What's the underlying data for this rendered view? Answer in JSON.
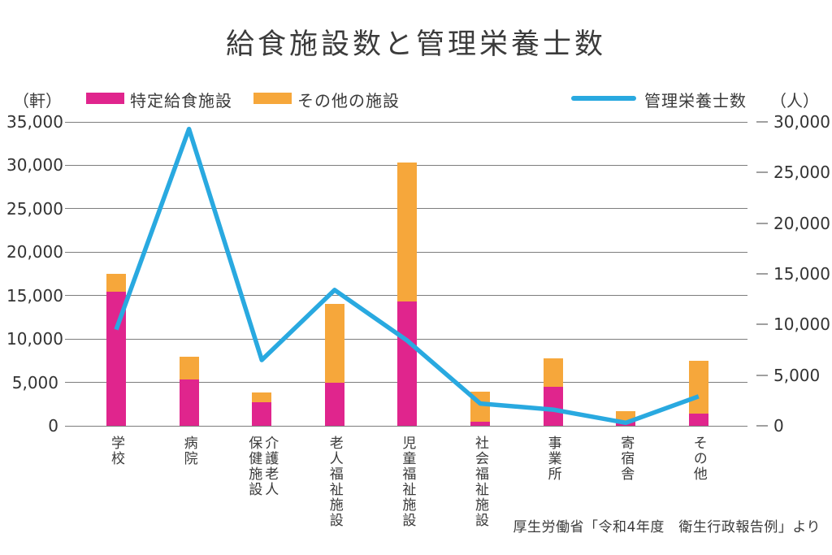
{
  "title": "給食施設数と管理栄養士数",
  "legend": {
    "left_unit": "（軒）",
    "right_unit": "（人）",
    "bar_series_1": "特定給食施設",
    "bar_series_2": "その他の施設",
    "line_series": "管理栄養士数"
  },
  "source": "厚生労働省「令和4年度　衛生行政報告例」より",
  "colors": {
    "pink": "#E0258D",
    "orange": "#F6A73B",
    "blue": "#29A9E0",
    "grid": "#7d7d7d",
    "text": "#3a3a3a"
  },
  "chart_data": {
    "type": "bar",
    "subtype": "stacked-bars-with-line-dual-axis",
    "title": "給食施設数と管理栄養士数",
    "categories": [
      {
        "label": "学校",
        "lines": [
          "学校"
        ]
      },
      {
        "label": "病院",
        "lines": [
          "病院"
        ]
      },
      {
        "label": "介護老人保健施設",
        "lines": [
          "介護老人",
          "保健施設"
        ]
      },
      {
        "label": "老人福祉施設",
        "lines": [
          "老人福祉施設"
        ]
      },
      {
        "label": "児童福祉施設",
        "lines": [
          "児童福祉施設"
        ]
      },
      {
        "label": "社会福祉施設",
        "lines": [
          "社会福祉施設"
        ]
      },
      {
        "label": "事業所",
        "lines": [
          "事業所"
        ]
      },
      {
        "label": "寄宿舎",
        "lines": [
          "寄宿舎"
        ]
      },
      {
        "label": "その他",
        "lines": [
          "その他"
        ]
      }
    ],
    "series": [
      {
        "name": "特定給食施設",
        "type": "bar",
        "axis": "left",
        "color": "#E0258D",
        "values": [
          15400,
          5300,
          2700,
          5000,
          14300,
          500,
          4500,
          500,
          1400
        ]
      },
      {
        "name": "その他の施設",
        "type": "bar",
        "axis": "left",
        "color": "#F6A73B",
        "values": [
          2100,
          2700,
          1100,
          9000,
          16000,
          3400,
          3300,
          1200,
          6100
        ]
      },
      {
        "name": "管理栄養士数",
        "type": "line",
        "axis": "right",
        "color": "#29A9E0",
        "values": [
          9500,
          29300,
          6500,
          13400,
          8400,
          2200,
          1600,
          300,
          2900
        ]
      }
    ],
    "left_axis": {
      "unit": "（軒）",
      "min": 0,
      "max": 35000,
      "tick_step": 5000
    },
    "right_axis": {
      "unit": "（人）",
      "min": 0,
      "max": 30000,
      "tick_step": 5000
    },
    "grid": true,
    "legend_position": "top"
  }
}
